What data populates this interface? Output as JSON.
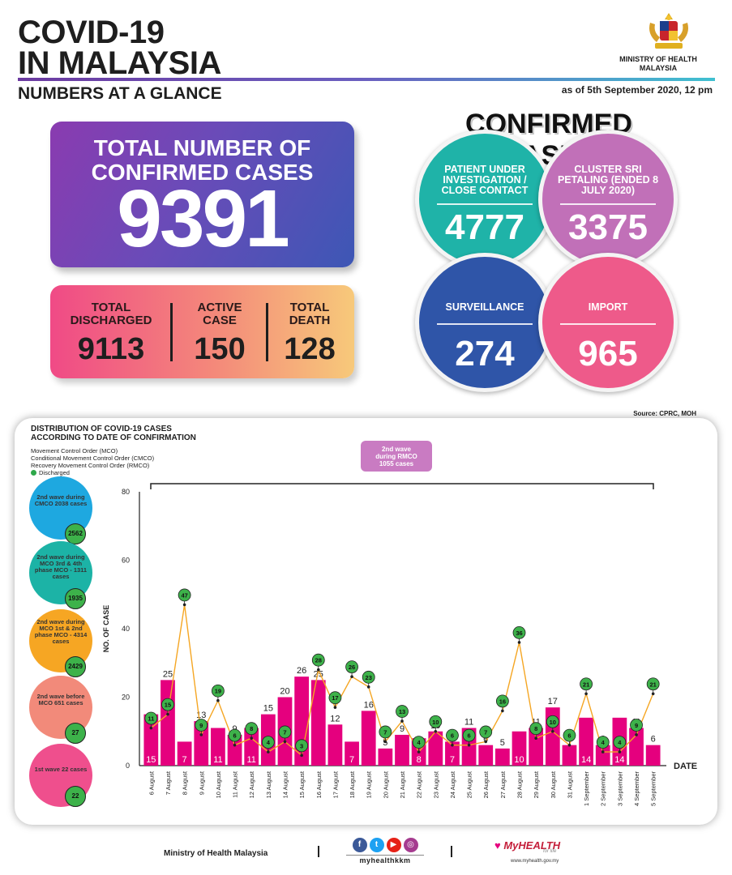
{
  "header": {
    "title_line1": "COVID-19",
    "title_line2": "IN MALAYSIA",
    "subtitle": "NUMBERS AT A GLANCE",
    "as_of": "as of 5th September 2020, 12 pm",
    "ministry_line1": "MINISTRY OF HEALTH",
    "ministry_line2": "MALAYSIA"
  },
  "total": {
    "label_line1": "TOTAL NUMBER OF",
    "label_line2": "CONFIRMED CASES",
    "value": "9391"
  },
  "stats": [
    {
      "label_line1": "TOTAL",
      "label_line2": "DISCHARGED",
      "value": "9113"
    },
    {
      "label_line1": "ACTIVE",
      "label_line2": "CASE",
      "value": "150"
    },
    {
      "label_line1": "TOTAL",
      "label_line2": "DEATH",
      "value": "128"
    }
  ],
  "confirmed": {
    "title": "CONFIRMED CASES",
    "circles": [
      {
        "label": "PATIENT UNDER INVESTIGATION / CLOSE CONTACT",
        "value": "4777",
        "color": "#1fb3a8"
      },
      {
        "label": "CLUSTER SRI PETALING (ENDED 8 JULY 2020)",
        "value": "3375",
        "color": "#c170b8"
      },
      {
        "label": "SURVEILLANCE",
        "value": "274",
        "color": "#2f55a8"
      },
      {
        "label": "IMPORT",
        "value": "965",
        "color": "#ee5a8a"
      }
    ]
  },
  "source": "Source: CPRC, MOH",
  "distribution": {
    "title_line1": "DISTRIBUTION OF COVID-19 CASES",
    "title_line2": "ACCORDING TO DATE OF CONFIRMATION",
    "legend": {
      "mco": "Movement Control Order (MCO)",
      "cmco": "Conditional Movement Control Order (CMCO)",
      "rmco": "Recovery Movement Control Order (RMCO)",
      "discharged": "Discharged"
    },
    "waves": [
      {
        "label": "2nd wave during CMCO 2038 cases",
        "badge": "2562",
        "color": "#1ea8e0"
      },
      {
        "label": "2nd wave during MCO 3rd & 4th phase MCO - 1311 cases",
        "badge": "1935",
        "color": "#1cb3a6"
      },
      {
        "label": "2nd wave during MCO 1st & 2nd phase MCO - 4314 cases",
        "badge": "2429",
        "color": "#f6a623"
      },
      {
        "label": "2nd wave before MCO 651 cases",
        "badge": "27",
        "color": "#f28a7a"
      },
      {
        "label": "1st wave 22 cases",
        "badge": "22",
        "color": "#ef4f8d"
      }
    ],
    "rmco_box": {
      "line1": "2nd wave",
      "line2": "during RMCO",
      "line3": "1055 cases"
    }
  },
  "chart_data": {
    "type": "bar",
    "title": "DISTRIBUTION OF COVID-19 CASES ACCORDING TO DATE OF CONFIRMATION",
    "xlabel": "DATE",
    "ylabel": "NO. OF CASE",
    "ylim": [
      0,
      80
    ],
    "yticks": [
      0,
      20,
      40,
      60,
      80
    ],
    "categories": [
      "6 August",
      "7 August",
      "8 August",
      "9 August",
      "10 August",
      "11 August",
      "12 August",
      "13 August",
      "14 August",
      "15 August",
      "16 August",
      "17 August",
      "18 August",
      "19 August",
      "20 August",
      "21 August",
      "22 August",
      "23 August",
      "24 August",
      "25 August",
      "26 August",
      "27 August",
      "28 August",
      "29 August",
      "30 August",
      "31 August",
      "1 September",
      "2 September",
      "3 September",
      "4 September",
      "5 September"
    ],
    "series": [
      {
        "name": "Confirmed",
        "type": "bar",
        "color": "#e5007e",
        "values": [
          15,
          25,
          7,
          13,
          11,
          9,
          11,
          15,
          20,
          26,
          25,
          12,
          7,
          16,
          5,
          9,
          8,
          10,
          7,
          11,
          6,
          5,
          10,
          11,
          17,
          6,
          14,
          6,
          14,
          11,
          6
        ]
      },
      {
        "name": "Discharged",
        "type": "line",
        "color": "#f5a623",
        "values": [
          11,
          15,
          47,
          9,
          19,
          6,
          8,
          4,
          7,
          3,
          28,
          17,
          26,
          23,
          7,
          13,
          4,
          10,
          6,
          6,
          7,
          16,
          36,
          8,
          10,
          6,
          21,
          4,
          4,
          9,
          21
        ]
      }
    ]
  },
  "footer": {
    "ministry": "Ministry of Health Malaysia",
    "handle": "myhealthkkm",
    "brand": "MyHEALTH",
    "tagline": "for life",
    "url": "www.myhealth.gov.my"
  }
}
